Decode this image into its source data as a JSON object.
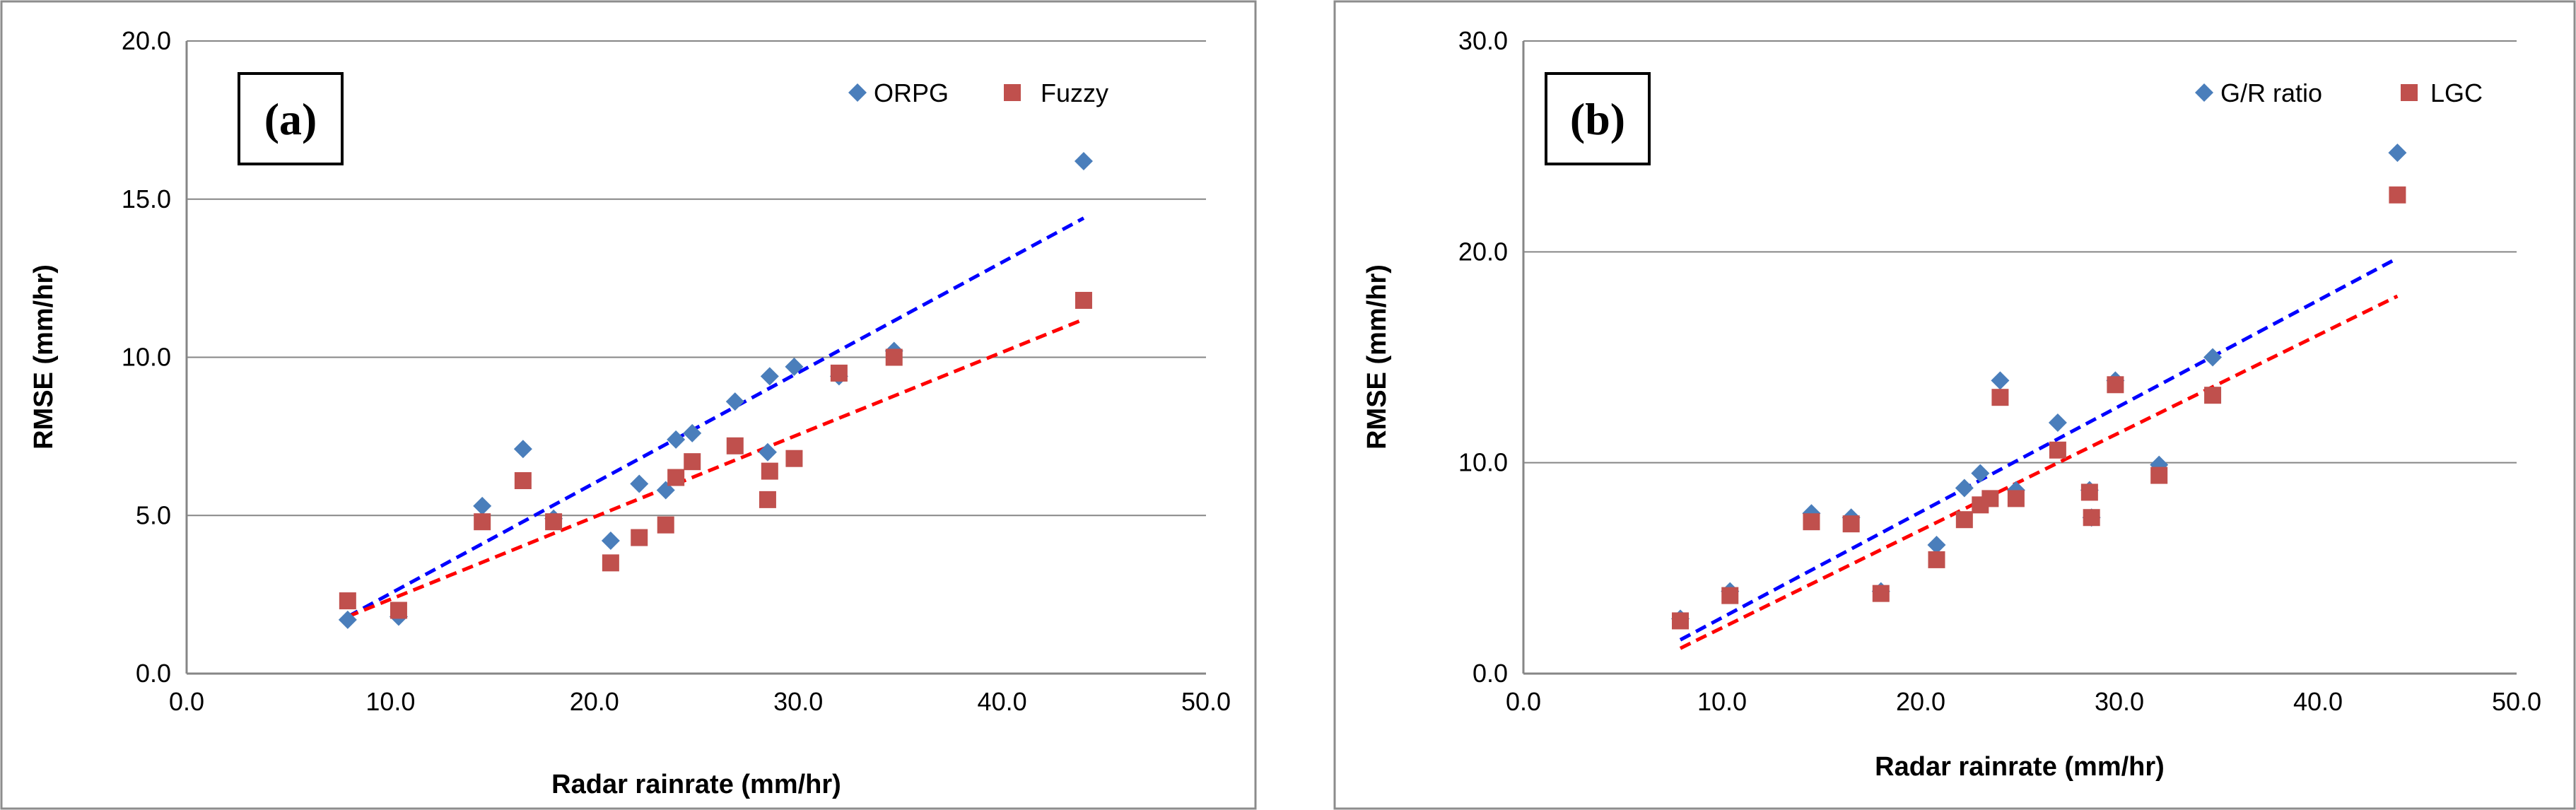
{
  "chart_data": [
    {
      "type": "scatter",
      "panel_label": "(a)",
      "xlabel": "Radar rainrate (mm/hr)",
      "ylabel": "RMSE (mm/hr)",
      "xlim": [
        0,
        50
      ],
      "ylim": [
        0,
        20
      ],
      "x_ticks": [
        "0.0",
        "10.0",
        "20.0",
        "30.0",
        "40.0",
        "50.0"
      ],
      "y_ticks": [
        "0.0",
        "5.0",
        "10.0",
        "15.0",
        "20.0"
      ],
      "grid": "horizontal",
      "legend_position": "top-right",
      "series": [
        {
          "name": "ORPG",
          "marker": "diamond",
          "color": "#4a7ebb",
          "x": [
            7.9,
            10.4,
            14.5,
            16.5,
            18.0,
            20.8,
            22.2,
            23.5,
            24.0,
            24.8,
            26.9,
            28.5,
            28.6,
            29.8,
            32.0,
            34.7,
            44.0
          ],
          "y": [
            1.7,
            1.8,
            5.3,
            7.1,
            4.9,
            4.2,
            6.0,
            5.8,
            7.4,
            7.6,
            8.6,
            7.0,
            9.4,
            9.7,
            9.4,
            10.2,
            16.2
          ],
          "trendline": {
            "x": [
              7.9,
              44.0
            ],
            "y": [
              1.8,
              14.4
            ],
            "color": "#0000ff",
            "style": "dashed"
          }
        },
        {
          "name": "Fuzzy",
          "marker": "square",
          "color": "#c0504d",
          "x": [
            7.9,
            10.4,
            14.5,
            16.5,
            18.0,
            20.8,
            22.2,
            23.5,
            24.0,
            24.8,
            26.9,
            28.5,
            28.6,
            29.8,
            32.0,
            34.7,
            44.0
          ],
          "y": [
            2.3,
            2.0,
            4.8,
            6.1,
            4.8,
            3.5,
            4.3,
            4.7,
            6.2,
            6.7,
            7.2,
            5.5,
            6.4,
            6.8,
            9.5,
            10.0,
            11.8
          ],
          "trendline": {
            "x": [
              7.9,
              44.0
            ],
            "y": [
              1.8,
              11.2
            ],
            "color": "#ff0000",
            "style": "dashed"
          }
        }
      ]
    },
    {
      "type": "scatter",
      "panel_label": "(b)",
      "xlabel": "Radar rainrate (mm/hr)",
      "ylabel": "RMSE (mm/hr)",
      "xlim": [
        0,
        50
      ],
      "ylim": [
        0,
        30
      ],
      "x_ticks": [
        "0.0",
        "10.0",
        "20.0",
        "30.0",
        "40.0",
        "50.0"
      ],
      "y_ticks": [
        "0.0",
        "10.0",
        "20.0",
        "30.0"
      ],
      "grid": "horizontal",
      "legend_position": "top-right",
      "series": [
        {
          "name": "G/R ratio",
          "marker": "diamond",
          "color": "#4a7ebb",
          "x": [
            7.9,
            10.4,
            14.5,
            16.5,
            18.0,
            20.8,
            22.2,
            23.0,
            24.0,
            24.8,
            26.9,
            28.5,
            28.6,
            29.8,
            32.0,
            34.7,
            44.0
          ],
          "y": [
            2.6,
            3.9,
            7.6,
            7.4,
            3.9,
            6.1,
            8.8,
            9.5,
            13.9,
            8.7,
            11.9,
            8.7,
            7.4,
            13.9,
            9.9,
            15.0,
            24.7
          ],
          "trendline": {
            "x": [
              7.9,
              44.0
            ],
            "y": [
              1.6,
              19.7
            ],
            "color": "#0000ff",
            "style": "dashed"
          }
        },
        {
          "name": "LGC",
          "marker": "square",
          "color": "#c0504d",
          "x": [
            7.9,
            10.4,
            14.5,
            16.5,
            18.0,
            20.8,
            22.2,
            23.0,
            23.5,
            24.0,
            24.8,
            26.9,
            28.5,
            28.6,
            29.8,
            32.0,
            34.7,
            44.0
          ],
          "y": [
            2.5,
            3.7,
            7.2,
            7.1,
            3.8,
            5.4,
            7.3,
            8.0,
            8.3,
            13.1,
            8.3,
            10.6,
            8.6,
            7.4,
            13.7,
            9.4,
            13.2,
            22.7
          ],
          "trendline": {
            "x": [
              7.9,
              44.0
            ],
            "y": [
              1.2,
              17.9
            ],
            "color": "#ff0000",
            "style": "dashed"
          }
        }
      ]
    }
  ]
}
